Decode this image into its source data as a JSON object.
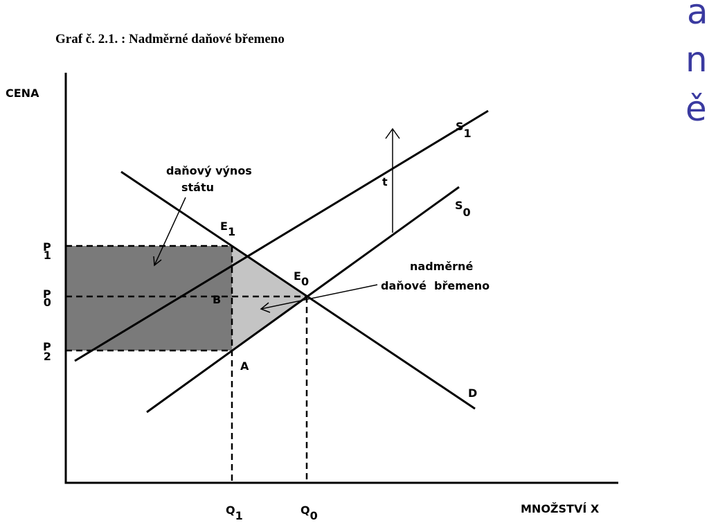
{
  "title": "Graf č. 2.1. : Nadměrné daňové břemeno",
  "axes": {
    "y_label": "CENA",
    "x_label": "MNOŽSTVÍ  X"
  },
  "prices": [
    {
      "base": "P",
      "sub": "1"
    },
    {
      "base": "P",
      "sub": "0"
    },
    {
      "base": "P",
      "sub": "2"
    }
  ],
  "quantities": [
    {
      "base": "Q",
      "sub": "1"
    },
    {
      "base": "Q",
      "sub": "0"
    }
  ],
  "points": {
    "e1": {
      "base": "E",
      "sub": "1"
    },
    "e0": {
      "base": "E",
      "sub": "0"
    },
    "b": "B",
    "a": "A"
  },
  "curves": {
    "s1": {
      "base": "S",
      "sub": "1"
    },
    "s0": {
      "base": "S",
      "sub": "0"
    },
    "d": "D",
    "t": "t"
  },
  "annotations": {
    "tax_revenue": [
      "daňový výnos",
      "státu"
    ],
    "excess_burden": [
      "nadměrné",
      "daňové  břemeno"
    ]
  },
  "side_text": [
    "a",
    "n",
    "ě"
  ]
}
